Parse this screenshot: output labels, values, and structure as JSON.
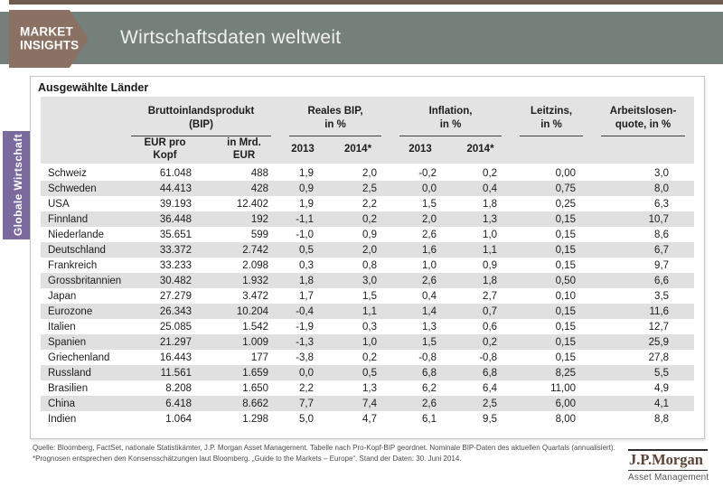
{
  "header": {
    "badge_line1": "MARKET",
    "badge_line2": "INSIGHTS",
    "title": "Wirtschaftsdaten weltweit"
  },
  "sidebar": {
    "tab_label": "Globale Wirtschaft"
  },
  "panel": {
    "title": "Ausgewählte Länder"
  },
  "table": {
    "groups": [
      {
        "line1": "Bruttoinlandsprodukt",
        "line2": "(BIP)"
      },
      {
        "line1": "Reales BIP,",
        "line2": "in %"
      },
      {
        "line1": "Inflation,",
        "line2": "in %"
      },
      {
        "line1": "Leitzins,",
        "line2": "in %"
      },
      {
        "line1": "Arbeitslosen-",
        "line2": "quote, in %"
      }
    ],
    "subheaders": [
      {
        "line1": "EUR pro",
        "line2": "Kopf"
      },
      {
        "line1": "in Mrd.",
        "line2": "EUR"
      },
      {
        "line1": "2013",
        "line2": ""
      },
      {
        "line1": "2014*",
        "line2": ""
      },
      {
        "line1": "2013",
        "line2": ""
      },
      {
        "line1": "2014*",
        "line2": ""
      }
    ],
    "rows": [
      {
        "country": "Schweiz",
        "values": [
          "61.048",
          "488",
          "1,9",
          "2,0",
          "-0,2",
          "0,2",
          "0,00",
          "3,0"
        ]
      },
      {
        "country": "Schweden",
        "values": [
          "44.413",
          "428",
          "0,9",
          "2,5",
          "0,0",
          "0,4",
          "0,75",
          "8,0"
        ]
      },
      {
        "country": "USA",
        "values": [
          "39.193",
          "12.402",
          "1,9",
          "2,2",
          "1,5",
          "1,8",
          "0,25",
          "6,3"
        ]
      },
      {
        "country": "Finnland",
        "values": [
          "36.448",
          "192",
          "-1,1",
          "0,2",
          "2,0",
          "1,3",
          "0,15",
          "10,7"
        ]
      },
      {
        "country": "Niederlande",
        "values": [
          "35.651",
          "599",
          "-1,0",
          "0,9",
          "2,6",
          "1,0",
          "0,15",
          "8,6"
        ]
      },
      {
        "country": "Deutschland",
        "values": [
          "33.372",
          "2.742",
          "0,5",
          "2,0",
          "1,6",
          "1,1",
          "0,15",
          "6,7"
        ]
      },
      {
        "country": "Frankreich",
        "values": [
          "33.233",
          "2.098",
          "0,3",
          "0,8",
          "1,0",
          "0,9",
          "0,15",
          "9,7"
        ]
      },
      {
        "country": "Grossbritannien",
        "values": [
          "30.482",
          "1.932",
          "1,8",
          "3,0",
          "2,6",
          "1,8",
          "0,50",
          "6,6"
        ]
      },
      {
        "country": "Japan",
        "values": [
          "27.279",
          "3.472",
          "1,7",
          "1,5",
          "0,4",
          "2,7",
          "0,10",
          "3,5"
        ]
      },
      {
        "country": "Eurozone",
        "values": [
          "26.343",
          "10.204",
          "-0,4",
          "1,1",
          "1,4",
          "0,7",
          "0,15",
          "11,6"
        ]
      },
      {
        "country": "Italien",
        "values": [
          "25.085",
          "1.542",
          "-1,9",
          "0,3",
          "1,3",
          "0,6",
          "0,15",
          "12,7"
        ]
      },
      {
        "country": "Spanien",
        "values": [
          "21.297",
          "1.009",
          "-1,3",
          "1,0",
          "1,5",
          "0,2",
          "0,15",
          "25,9"
        ]
      },
      {
        "country": "Griechenland",
        "values": [
          "16.443",
          "177",
          "-3,8",
          "0,2",
          "-0,8",
          "-0,8",
          "0,15",
          "27,8"
        ]
      },
      {
        "country": "Russland",
        "values": [
          "11.561",
          "1.659",
          "0,0",
          "0,5",
          "6,8",
          "6,8",
          "8,25",
          "5,5"
        ]
      },
      {
        "country": "Brasilien",
        "values": [
          "8.208",
          "1.650",
          "2,2",
          "1,3",
          "6,2",
          "6,4",
          "11,00",
          "4,9"
        ]
      },
      {
        "country": "China",
        "values": [
          "6.418",
          "8.662",
          "7,7",
          "7,4",
          "2,6",
          "2,5",
          "6,00",
          "4,1"
        ]
      },
      {
        "country": "Indien",
        "values": [
          "1.064",
          "1.298",
          "5,0",
          "4,7",
          "6,1",
          "9,5",
          "8,00",
          "8,8"
        ]
      }
    ]
  },
  "footer": {
    "source": "Quelle: Bloomberg, FactSet, nationale Statistikämter, J.P. Morgan Asset Management. Tabelle nach Pro-Kopf-BIP geordnet. Nominale BIP-Daten des aktuellen Quartals (annualisiert). *Prognosen entsprechen den Konsensschätzungen laut Bloomberg. „Guide to the Markets – Europe“. Stand der Daten: 30. Juni 2014.",
    "logo_name": "J.P.Morgan",
    "logo_subtitle": "Asset Management"
  },
  "colors": {
    "title_bar": "#76807b",
    "badge": "#8a7163",
    "top_rule": "#6f5b50",
    "sidebar_tab": "#7a6a9e",
    "header_bg": "#e3e3e3",
    "row_stripe": "#e0e0e0",
    "logo_text": "#5c4536"
  },
  "chart_data": {
    "type": "table",
    "title": "Wirtschaftsdaten weltweit – Ausgewählte Länder",
    "categories": [
      "Schweiz",
      "Schweden",
      "USA",
      "Finnland",
      "Niederlande",
      "Deutschland",
      "Frankreich",
      "Grossbritannien",
      "Japan",
      "Eurozone",
      "Italien",
      "Spanien",
      "Griechenland",
      "Russland",
      "Brasilien",
      "China",
      "Indien"
    ],
    "series": [
      {
        "name": "BIP EUR pro Kopf",
        "values": [
          61048,
          44413,
          39193,
          36448,
          35651,
          33372,
          33233,
          30482,
          27279,
          26343,
          25085,
          21297,
          16443,
          11561,
          8208,
          6418,
          1064
        ]
      },
      {
        "name": "BIP in Mrd. EUR",
        "values": [
          488,
          428,
          12402,
          192,
          599,
          2742,
          2098,
          1932,
          3472,
          10204,
          1542,
          1009,
          177,
          1659,
          1650,
          8662,
          1298
        ]
      },
      {
        "name": "Reales BIP 2013 in %",
        "values": [
          1.9,
          0.9,
          1.9,
          -1.1,
          -1.0,
          0.5,
          0.3,
          1.8,
          1.7,
          -0.4,
          -1.9,
          -1.3,
          -3.8,
          0.0,
          2.2,
          7.7,
          5.0
        ]
      },
      {
        "name": "Reales BIP 2014* in %",
        "values": [
          2.0,
          2.5,
          2.2,
          0.2,
          0.9,
          2.0,
          0.8,
          3.0,
          1.5,
          1.1,
          0.3,
          1.0,
          0.2,
          0.5,
          1.3,
          7.4,
          4.7
        ]
      },
      {
        "name": "Inflation 2013 in %",
        "values": [
          -0.2,
          0.0,
          1.5,
          2.0,
          2.6,
          1.6,
          1.0,
          2.6,
          0.4,
          1.4,
          1.3,
          1.5,
          -0.8,
          6.8,
          6.2,
          2.6,
          6.1
        ]
      },
      {
        "name": "Inflation 2014* in %",
        "values": [
          0.2,
          0.4,
          1.8,
          1.3,
          1.0,
          1.1,
          0.9,
          1.8,
          2.7,
          0.7,
          0.6,
          0.2,
          -0.8,
          6.8,
          6.4,
          2.5,
          9.5
        ]
      },
      {
        "name": "Leitzins in %",
        "values": [
          0.0,
          0.75,
          0.25,
          0.15,
          0.15,
          0.15,
          0.15,
          0.5,
          0.1,
          0.15,
          0.15,
          0.15,
          0.15,
          8.25,
          11.0,
          6.0,
          8.0
        ]
      },
      {
        "name": "Arbeitslosenquote in %",
        "values": [
          3.0,
          8.0,
          6.3,
          10.7,
          8.6,
          6.7,
          9.7,
          6.6,
          3.5,
          11.6,
          12.7,
          25.9,
          27.8,
          5.5,
          4.9,
          4.1,
          8.8
        ]
      }
    ]
  }
}
